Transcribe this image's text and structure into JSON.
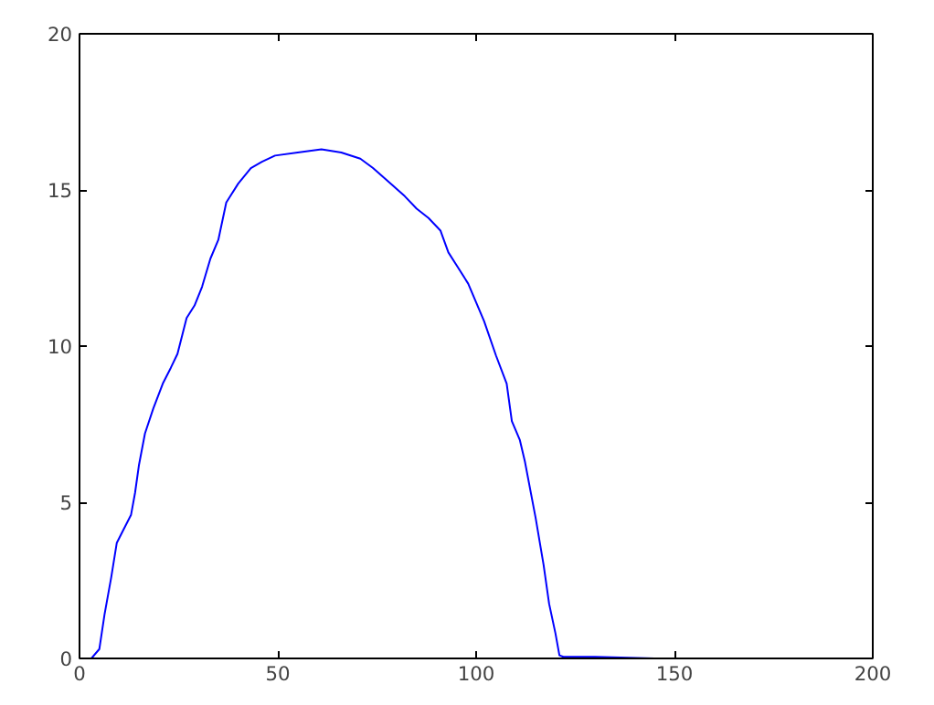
{
  "chart_data": {
    "type": "line",
    "xlim": [
      0,
      200
    ],
    "ylim": [
      0,
      20
    ],
    "xticks": [
      0,
      50,
      100,
      150,
      200
    ],
    "yticks": [
      0,
      5,
      10,
      15,
      20
    ],
    "grid": false,
    "series": [
      {
        "color": "#0000ff",
        "x": [
          0,
          3,
          5,
          6.3,
          8,
          9.4,
          11,
          13,
          14,
          15,
          16.5,
          18.6,
          21,
          23,
          24.7,
          27,
          29,
          30.9,
          33,
          35,
          37,
          40,
          43.2,
          46,
          49.3,
          55,
          61,
          66,
          70.8,
          74,
          78.5,
          82,
          85,
          88,
          91,
          93,
          95,
          98,
          100,
          102,
          105,
          107.7,
          109,
          111,
          112.3,
          115,
          117,
          118.4,
          120,
          121,
          122,
          130,
          145
        ],
        "values": [
          0,
          0,
          0.3,
          1.4,
          2.6,
          3.7,
          4.1,
          4.6,
          5.3,
          6.2,
          7.2,
          8,
          8.8,
          9.3,
          9.75,
          10.9,
          11.3,
          11.9,
          12.8,
          13.4,
          14.6,
          15.2,
          15.7,
          15.9,
          16.1,
          16.2,
          16.3,
          16.2,
          16.0,
          15.7,
          15.2,
          14.8,
          14.4,
          14.1,
          13.7,
          13.0,
          12.6,
          12.0,
          11.4,
          10.8,
          9.7,
          8.8,
          7.6,
          7.0,
          6.3,
          4.5,
          3.0,
          1.75,
          0.8,
          0.1,
          0.05,
          0.05,
          0
        ]
      }
    ]
  }
}
